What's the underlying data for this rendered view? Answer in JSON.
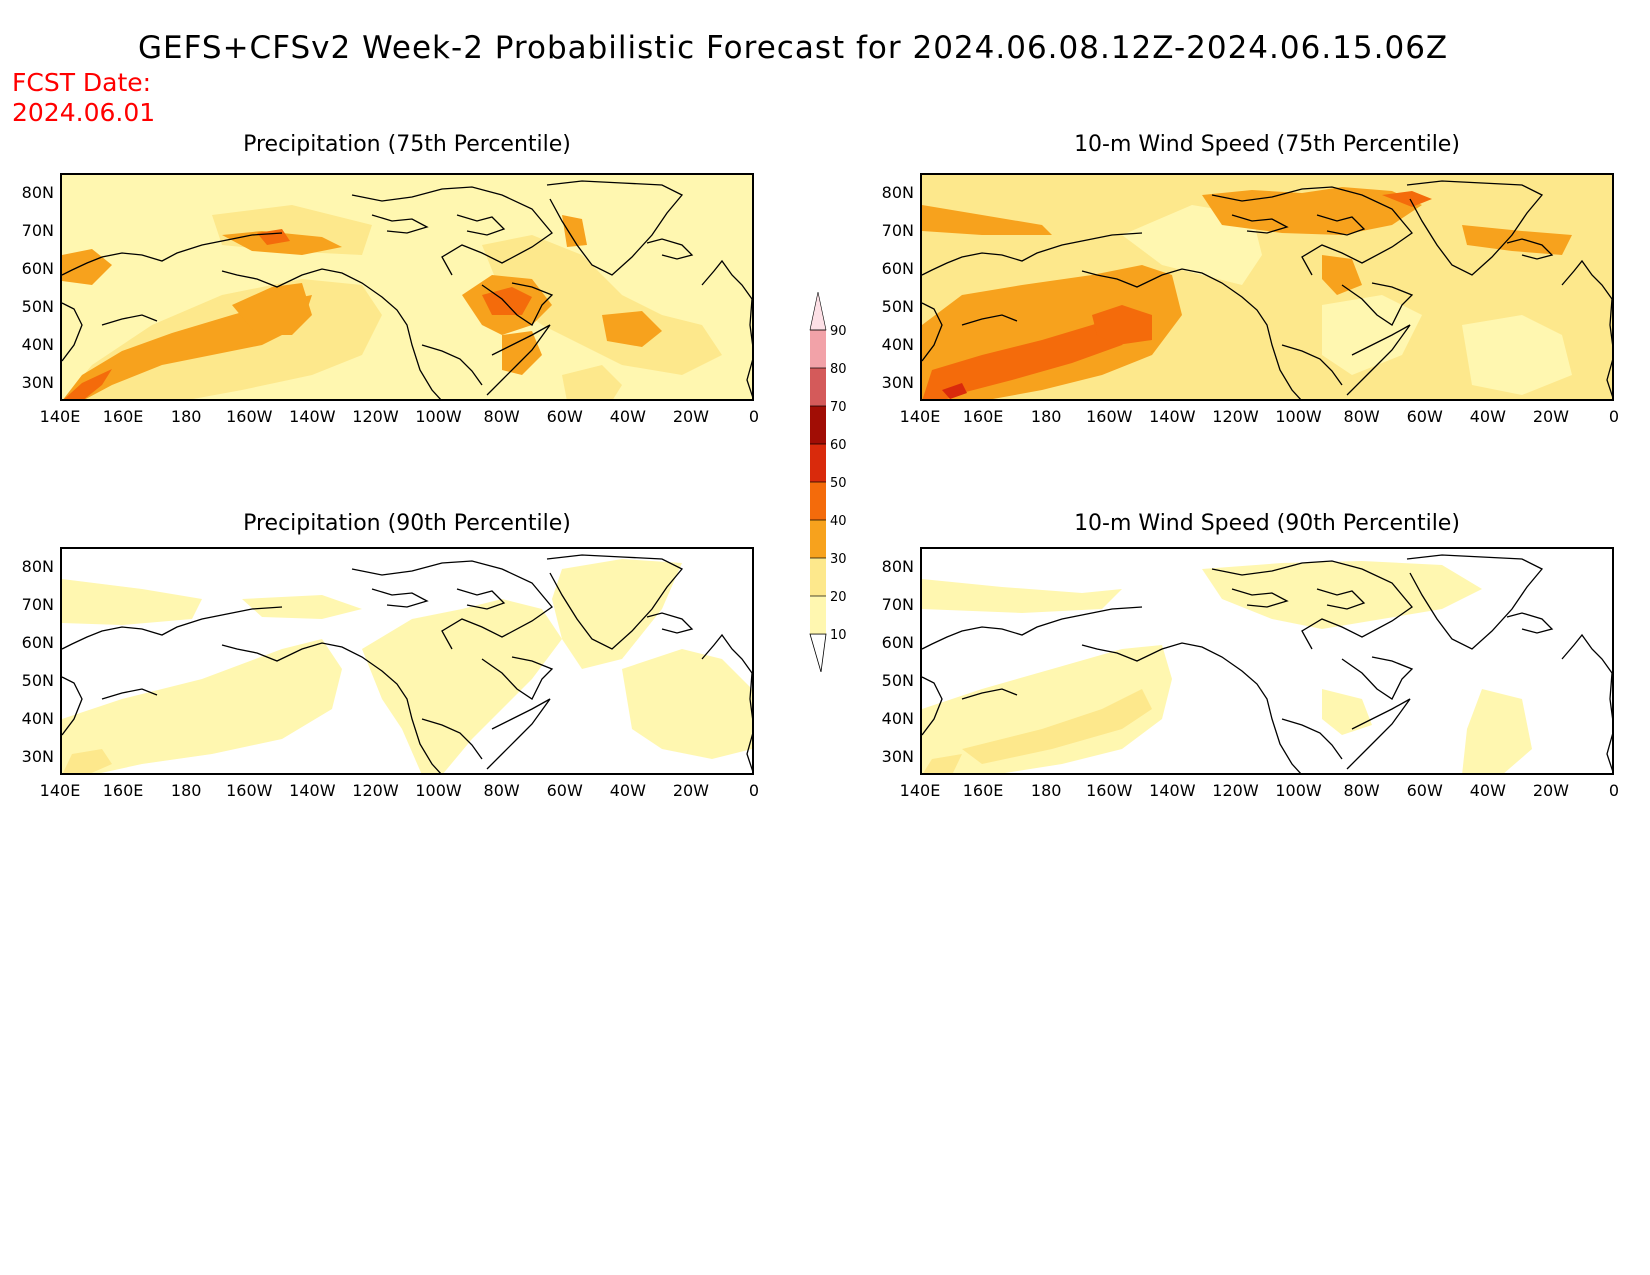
{
  "title": "GEFS+CFSv2 Week-2 Probabilistic Forecast for 2024.06.08.12Z-2024.06.15.06Z",
  "fcst_label": "FCST Date:",
  "fcst_date": "2024.06.01",
  "panels": [
    {
      "title": "Precipitation (75th Percentile)"
    },
    {
      "title": "10-m Wind Speed (75th Percentile)"
    },
    {
      "title": "Precipitation (90th Percentile)"
    },
    {
      "title": "10-m Wind Speed (90th Percentile)"
    }
  ],
  "axes": {
    "x_ticks": [
      "140E",
      "160E",
      "180",
      "160W",
      "140W",
      "120W",
      "100W",
      "80W",
      "60W",
      "40W",
      "20W",
      "0"
    ],
    "y_ticks": [
      "80N",
      "70N",
      "60N",
      "50N",
      "40N",
      "30N"
    ]
  },
  "colorbar": {
    "levels": [
      "10",
      "20",
      "30",
      "40",
      "50",
      "60",
      "70",
      "80",
      "90"
    ],
    "colors": [
      "#fff7b0",
      "#fde88c",
      "#f7a21d",
      "#f46b0b",
      "#d92a0c",
      "#a10d05",
      "#d45a5a",
      "#f2a2a8",
      "#fde0e6"
    ]
  }
}
